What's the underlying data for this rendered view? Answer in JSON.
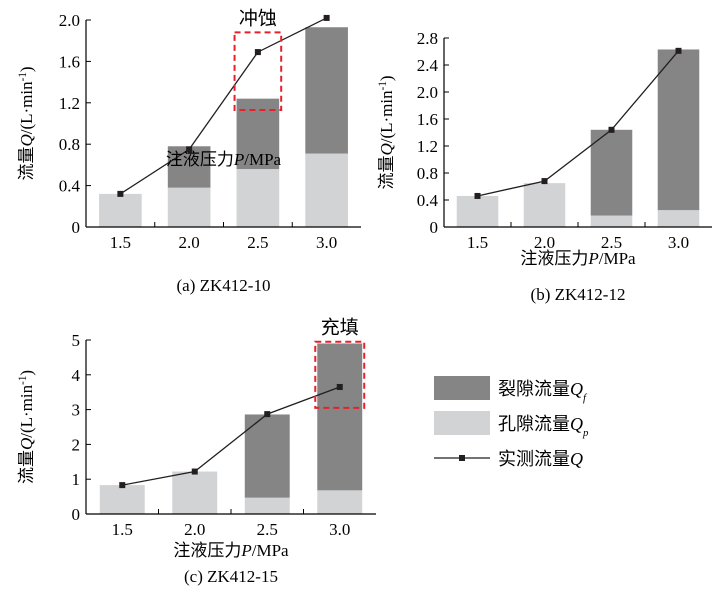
{
  "colors": {
    "crack": "#858585",
    "pore": "#d1d3d4",
    "line": "#231f20",
    "highlight": "#e8202a"
  },
  "legend": {
    "items": [
      {
        "label": "裂隙流量",
        "sym": "Q",
        "sub": "f",
        "kind": "bar",
        "color": "#858585"
      },
      {
        "label": "孔隙流量",
        "sym": "Q",
        "sub": "p",
        "kind": "bar",
        "color": "#d1d3d4"
      },
      {
        "label": "实测流量",
        "sym": "Q",
        "sub": "",
        "kind": "line",
        "color": "#231f20"
      }
    ]
  },
  "chart_data": [
    {
      "type": "bar",
      "caption": "(a) ZK412-10",
      "xlabel": "注液压力P/MPa",
      "ylabel": "流量Q/(L·min-1)",
      "categories": [
        "1.5",
        "2.0",
        "2.5",
        "3.0"
      ],
      "ylim": [
        0,
        2.0
      ],
      "yticks": [
        "0",
        "0.4",
        "0.8",
        "1.2",
        "1.6",
        "2.0"
      ],
      "stack_pore": [
        0.32,
        0.38,
        0.56,
        0.71
      ],
      "stack_crack": [
        0.0,
        0.4,
        0.68,
        1.22
      ],
      "measured": [
        0.32,
        0.75,
        1.69,
        2.02
      ],
      "annotation": {
        "text": "冲蚀",
        "category": "2.5"
      }
    },
    {
      "type": "bar",
      "caption": "(b) ZK412-12",
      "xlabel": "注液压力P/MPa",
      "ylabel": "流量Q/(L·min-1)",
      "categories": [
        "1.5",
        "2.0",
        "2.5",
        "3.0"
      ],
      "ylim": [
        0,
        2.8
      ],
      "yticks": [
        "0",
        "0.4",
        "0.8",
        "1.2",
        "1.6",
        "2.0",
        "2.4",
        "2.8"
      ],
      "stack_pore": [
        0.46,
        0.65,
        0.17,
        0.25
      ],
      "stack_crack": [
        0.0,
        0.0,
        1.27,
        2.38
      ],
      "measured": [
        0.46,
        0.68,
        1.44,
        2.61
      ]
    },
    {
      "type": "bar",
      "caption": "(c) ZK412-15",
      "xlabel": "注液压力P/MPa",
      "ylabel": "流量Q/(L·min-1)",
      "categories": [
        "1.5",
        "2.0",
        "2.5",
        "3.0"
      ],
      "ylim": [
        0,
        5
      ],
      "yticks": [
        "0",
        "1",
        "2",
        "3",
        "4",
        "5"
      ],
      "stack_pore": [
        0.83,
        1.22,
        0.47,
        0.68
      ],
      "stack_crack": [
        0.0,
        0.0,
        2.39,
        4.22
      ],
      "measured": [
        0.83,
        1.22,
        2.87,
        3.65
      ],
      "annotation": {
        "text": "充填",
        "category": "3.0"
      }
    }
  ]
}
